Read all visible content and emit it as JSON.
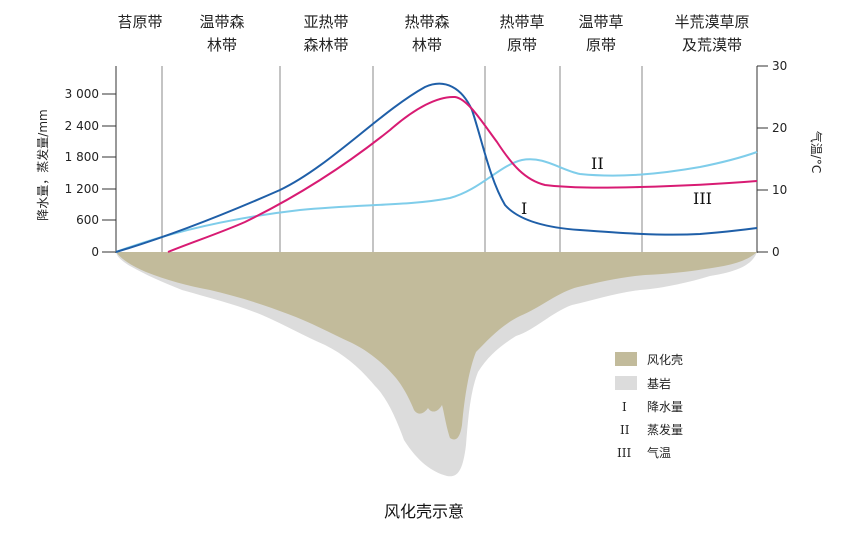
{
  "zones": [
    {
      "line1": "苔原带",
      "line2": ""
    },
    {
      "line1": "温带森",
      "line2": "林带"
    },
    {
      "line1": "亚热带",
      "line2": "森林带"
    },
    {
      "line1": "热带森",
      "line2": "林带"
    },
    {
      "line1": "热带草",
      "line2": "原带"
    },
    {
      "line1": "温带草",
      "line2": "原带"
    },
    {
      "line1": "半荒漠草原",
      "line2": "及荒漠带"
    }
  ],
  "left_axis": {
    "label": "降水量，蒸发量/mm",
    "ticks": [
      "3 000",
      "2 400",
      "1 800",
      "1 200",
      "600",
      "0"
    ]
  },
  "right_axis": {
    "label": "气温/°C",
    "ticks": [
      "30",
      "20",
      "10",
      "0"
    ]
  },
  "curve_labels": {
    "precipitation": "I",
    "evaporation": "II",
    "temperature": "III"
  },
  "legend": {
    "weathering_crust": "风化壳",
    "bedrock": "基岩",
    "precipitation_symbol": "I",
    "precipitation": "降水量",
    "evaporation_symbol": "II",
    "evaporation": "蒸发量",
    "temperature_symbol": "III",
    "temperature": "气温"
  },
  "caption": "风化壳示意",
  "colors": {
    "precipitation": "#1f5fa8",
    "evaporation": "#7fcdea",
    "temperature": "#d81b73",
    "weathering_crust": "#c2bb9b",
    "bedrock": "#dcdcdc"
  }
}
